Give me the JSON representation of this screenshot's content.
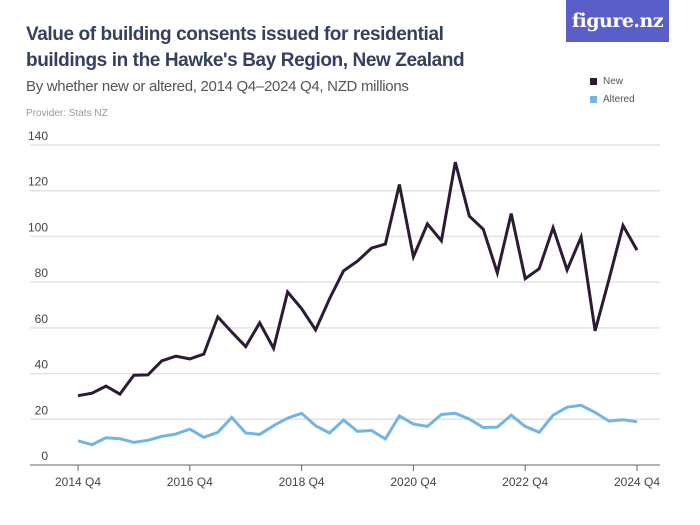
{
  "logo": "figure.nz",
  "chart_data": {
    "type": "line",
    "title": "Value of building consents issued for residential buildings in the Hawke's Bay Region, New Zealand",
    "subtitle": "By whether new or altered, 2014 Q4–2024 Q4, NZD millions",
    "provider": "Provider: Stats NZ",
    "x_start": "2014 Q4",
    "x_end": "2024 Q4",
    "x_tick_labels": [
      "2014 Q4",
      "2016 Q4",
      "2018 Q4",
      "2020 Q4",
      "2022 Q4",
      "2024 Q4"
    ],
    "y_ticks": [
      0,
      20,
      40,
      60,
      80,
      100,
      120,
      140
    ],
    "ylim": [
      0,
      140
    ],
    "grid": true,
    "legend_placement": "top-right",
    "series": [
      {
        "name": "New",
        "color": "#2d1b36",
        "values": [
          30.3,
          31.4,
          34.5,
          31,
          39.3,
          39.4,
          45.6,
          47.6,
          46.4,
          48.5,
          64.8,
          58.2,
          51.8,
          62.2,
          51,
          75.7,
          68.4,
          59.1,
          72.8,
          84.9,
          89.2,
          94.9,
          96.7,
          122.7,
          91.1,
          105.5,
          98.1,
          132.5,
          108.9,
          103.1,
          84.1,
          110,
          81.5,
          85.9,
          103.8,
          85.3,
          99.7,
          58.7,
          81.2,
          104.8,
          94
        ]
      },
      {
        "name": "Altered",
        "color": "#74b4e4",
        "values": [
          10.6,
          8.9,
          11.9,
          11.5,
          9.9,
          10.8,
          12.5,
          13.5,
          15.7,
          12.1,
          14.3,
          20.8,
          14,
          13.4,
          17.2,
          20.5,
          22.6,
          17.2,
          14,
          19.7,
          14.7,
          15.1,
          11.4,
          21.5,
          17.9,
          16.9,
          22.1,
          22.6,
          20.1,
          16.4,
          16.6,
          21.8,
          16.9,
          14.3,
          21.8,
          25.3,
          26.1,
          23,
          19.2,
          19.8,
          18.9
        ]
      }
    ]
  }
}
